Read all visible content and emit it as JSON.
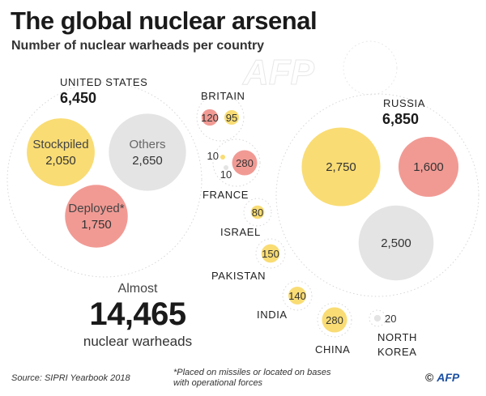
{
  "title": "The global nuclear arsenal",
  "subtitle": "Number of nuclear warheads per country",
  "source": "Source: SIPRI Yearbook 2018",
  "footnote": "*Placed on missiles or located on bases with operational forces",
  "credit_symbol": "©",
  "credit_brand": "AFP",
  "watermark": "AFP",
  "total": {
    "lead": "Almost",
    "value": "14,465",
    "unit": "nuclear warheads"
  },
  "colors": {
    "stockpiled": "#f9dc74",
    "deployed": "#f19a94",
    "others": "#e4e4e4"
  },
  "chart_data": {
    "type": "bubble",
    "title": "The global nuclear arsenal",
    "subtitle": "Number of nuclear warheads per country",
    "countries": [
      {
        "country": "United States",
        "total": "6,450",
        "segments": [
          {
            "label": "Stockpiled",
            "value": 2050,
            "display": "2,050",
            "category": "stockpiled"
          },
          {
            "label": "Others",
            "value": 2650,
            "display": "2,650",
            "category": "others"
          },
          {
            "label": "Deployed*",
            "value": 1750,
            "display": "1,750",
            "category": "deployed"
          }
        ]
      },
      {
        "country": "Russia",
        "total": "6,850",
        "segments": [
          {
            "value": 2750,
            "display": "2,750",
            "category": "stockpiled"
          },
          {
            "value": 1600,
            "display": "1,600",
            "category": "deployed"
          },
          {
            "value": 2500,
            "display": "2,500",
            "category": "others"
          }
        ]
      },
      {
        "country": "Britain",
        "segments": [
          {
            "value": 120,
            "display": "120",
            "category": "deployed"
          },
          {
            "value": 95,
            "display": "95",
            "category": "stockpiled"
          }
        ]
      },
      {
        "country": "France",
        "segments": [
          {
            "value": 10,
            "display": "10",
            "category": "stockpiled"
          },
          {
            "value": 280,
            "display": "280",
            "category": "deployed"
          },
          {
            "value": 10,
            "display": "10",
            "category": "others"
          }
        ]
      },
      {
        "country": "Israel",
        "segments": [
          {
            "value": 80,
            "display": "80",
            "category": "stockpiled"
          }
        ]
      },
      {
        "country": "Pakistan",
        "segments": [
          {
            "value": 150,
            "display": "150",
            "category": "stockpiled"
          }
        ]
      },
      {
        "country": "India",
        "segments": [
          {
            "value": 140,
            "display": "140",
            "category": "stockpiled"
          }
        ]
      },
      {
        "country": "China",
        "segments": [
          {
            "value": 280,
            "display": "280",
            "category": "stockpiled"
          }
        ]
      },
      {
        "country": "North Korea",
        "segments": [
          {
            "value": 20,
            "display": "20",
            "category": "others"
          }
        ]
      }
    ]
  }
}
